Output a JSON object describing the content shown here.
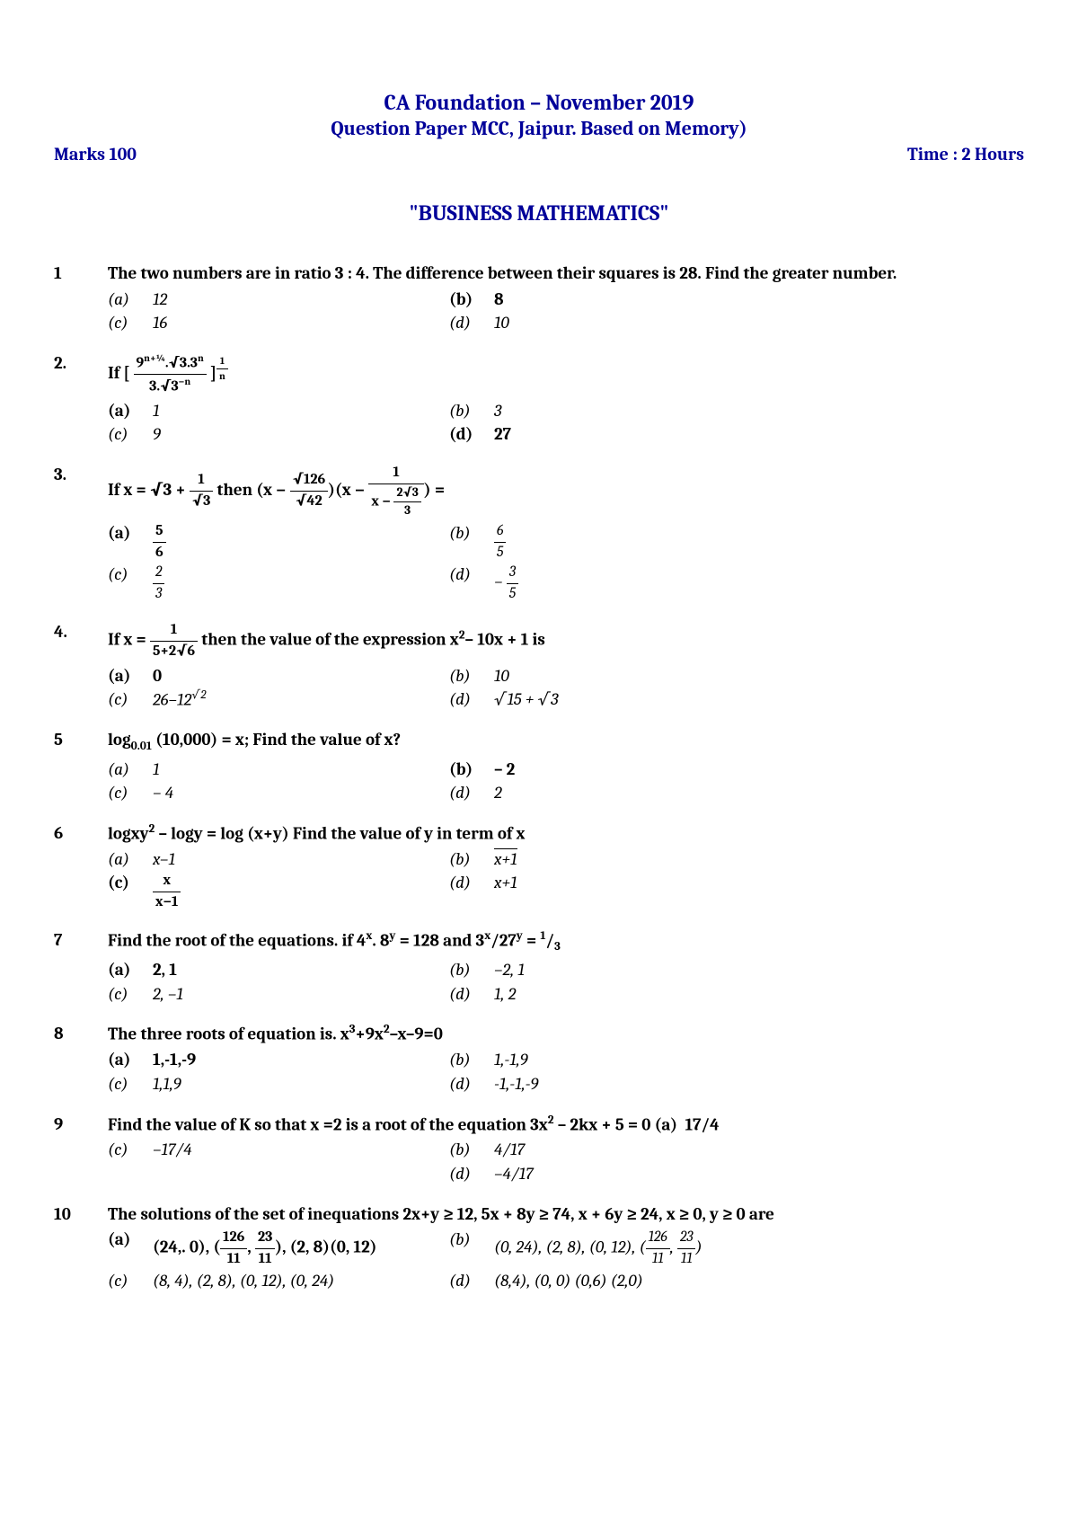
{
  "header": {
    "title": "CA Foundation – November 2019",
    "subtitle": "Question Paper MCC, Jaipur. Based on Memory)",
    "marks": "Marks 100",
    "time": "Time : 2 Hours"
  },
  "section_title": "\"BUSINESS MATHEMATICS\"",
  "questions": [
    {
      "num": "1",
      "text": "The two numbers are in ratio 3 : 4. The difference between their squares is 28. Find the greater number.",
      "a": "12",
      "b": "8",
      "c": "16",
      "d": "10",
      "bold": "b"
    },
    {
      "num": "2.",
      "text_html": "If [ <span class='frac'><span class='num'>9<sup>n+¼</sup>.√3.3<sup>n</sup></span><span class='den'>3.√3<sup>−n</sup></span></span> ]<sup><span class='frac'><span class='num'>1</span><span class='den'>n</span></span></sup>",
      "a": "1",
      "b": "3",
      "c": "9",
      "d": "27",
      "bold": "d",
      "a_bold_label": true
    },
    {
      "num": "3.",
      "text_html": "If x = √3 + <span class='frac'><span class='num'>1</span><span class='den'>√3</span></span> then (x − <span class='frac'><span class='num'>√126</span><span class='den'>√42</span></span>)(x − <span class='frac'><span class='num'>1</span><span class='den'>x − <span class='frac'><span class='num'>2√3</span><span class='den'>3</span></span></span></span>) =",
      "a_html": "<span class='frac'><span class='num'>5</span><span class='den'>6</span></span>",
      "b_html": "<span class='frac'><span class='num'>6</span><span class='den'>5</span></span>",
      "c_html": "<span class='frac'><span class='num'>2</span><span class='den'>3</span></span>",
      "d_html": "− <span class='frac'><span class='num'>3</span><span class='den'>5</span></span>",
      "bold": "a"
    },
    {
      "num": "4.",
      "text_html": "If x = <span class='frac'><span class='num'>1</span><span class='den'>5+2√6</span></span> then the value of the expression x<sup>2</sup>– 10x + 1 is",
      "a": "0",
      "b": "10",
      "c_html": "26–12<sup>√2</sup>",
      "d_html": "√15 + √3",
      "bold": "a"
    },
    {
      "num": "5",
      "text_html": "log<sub>0.01</sub> (10,000) = x; Find the value of x?",
      "a": "1",
      "b": "– 2",
      "c": "– 4",
      "d": "2",
      "bold": "b"
    },
    {
      "num": "6",
      "text_html": "logxy<sup>2</sup> – logy = log (x+y) Find the value of y in term of x",
      "a": "x–1",
      "b_html": "<span style='border-top:1px solid #000'>x+1</span>",
      "c_html": "<span class='frac'><span class='num'>x</span><span class='den'>x−1</span></span>",
      "d": "x+1",
      "bold": "c"
    },
    {
      "num": "7",
      "text_html": "Find the root of the equations. if 4<sup>x</sup>. 8<sup>y</sup> = 128 and 3<sup>x</sup>/27<sup>y</sup> = <sup>1</sup>/<sub>3</sub>",
      "a": "2, 1",
      "b": "–2, 1",
      "c": "2, –1",
      "d": "1, 2",
      "bold": "a"
    },
    {
      "num": "8",
      "text_html": "The three roots of equation is. x<sup>3</sup>+9x<sup>2</sup>–x–9=0",
      "a": "1,-1,-9",
      "b": "1,-1,9",
      "c": "1,1,9",
      "d": "-1,-1,-9",
      "bold": "a"
    },
    {
      "num": "9",
      "text_html": "Find the value of K so that x =2 is a root of the equation 3x<sup>2</sup> – 2kx + 5 = 0",
      "a": "17/4",
      "b": "4/17",
      "c": "–17/4",
      "d": "–4/17",
      "bold": "a",
      "a_inline": true
    },
    {
      "num": "10",
      "text_html": "The solutions of the set of inequations 2x+y ≥ 12, 5x + 8y ≥ 74, x + 6y ≥ 24, x ≥ 0, y ≥ 0 are",
      "a_html": "(24,. 0),  (<span class='frac'><span class='num'>126</span><span class='den'>11</span></span>, <span class='frac'><span class='num'>23</span><span class='den'>11</span></span>), (2, 8)(0, 12)",
      "b_html": "(0, 24), (2, 8), (0, 12), (<span class='frac'><span class='num'>126</span><span class='den'>11</span></span>, <span class='frac'><span class='num'>23</span><span class='den'>11</span></span>)",
      "c": "(8, 4), (2, 8), (0, 12), (0, 24)",
      "d": "(8,4), (0, 0) (0,6) (2,0)",
      "bold": "a"
    }
  ]
}
